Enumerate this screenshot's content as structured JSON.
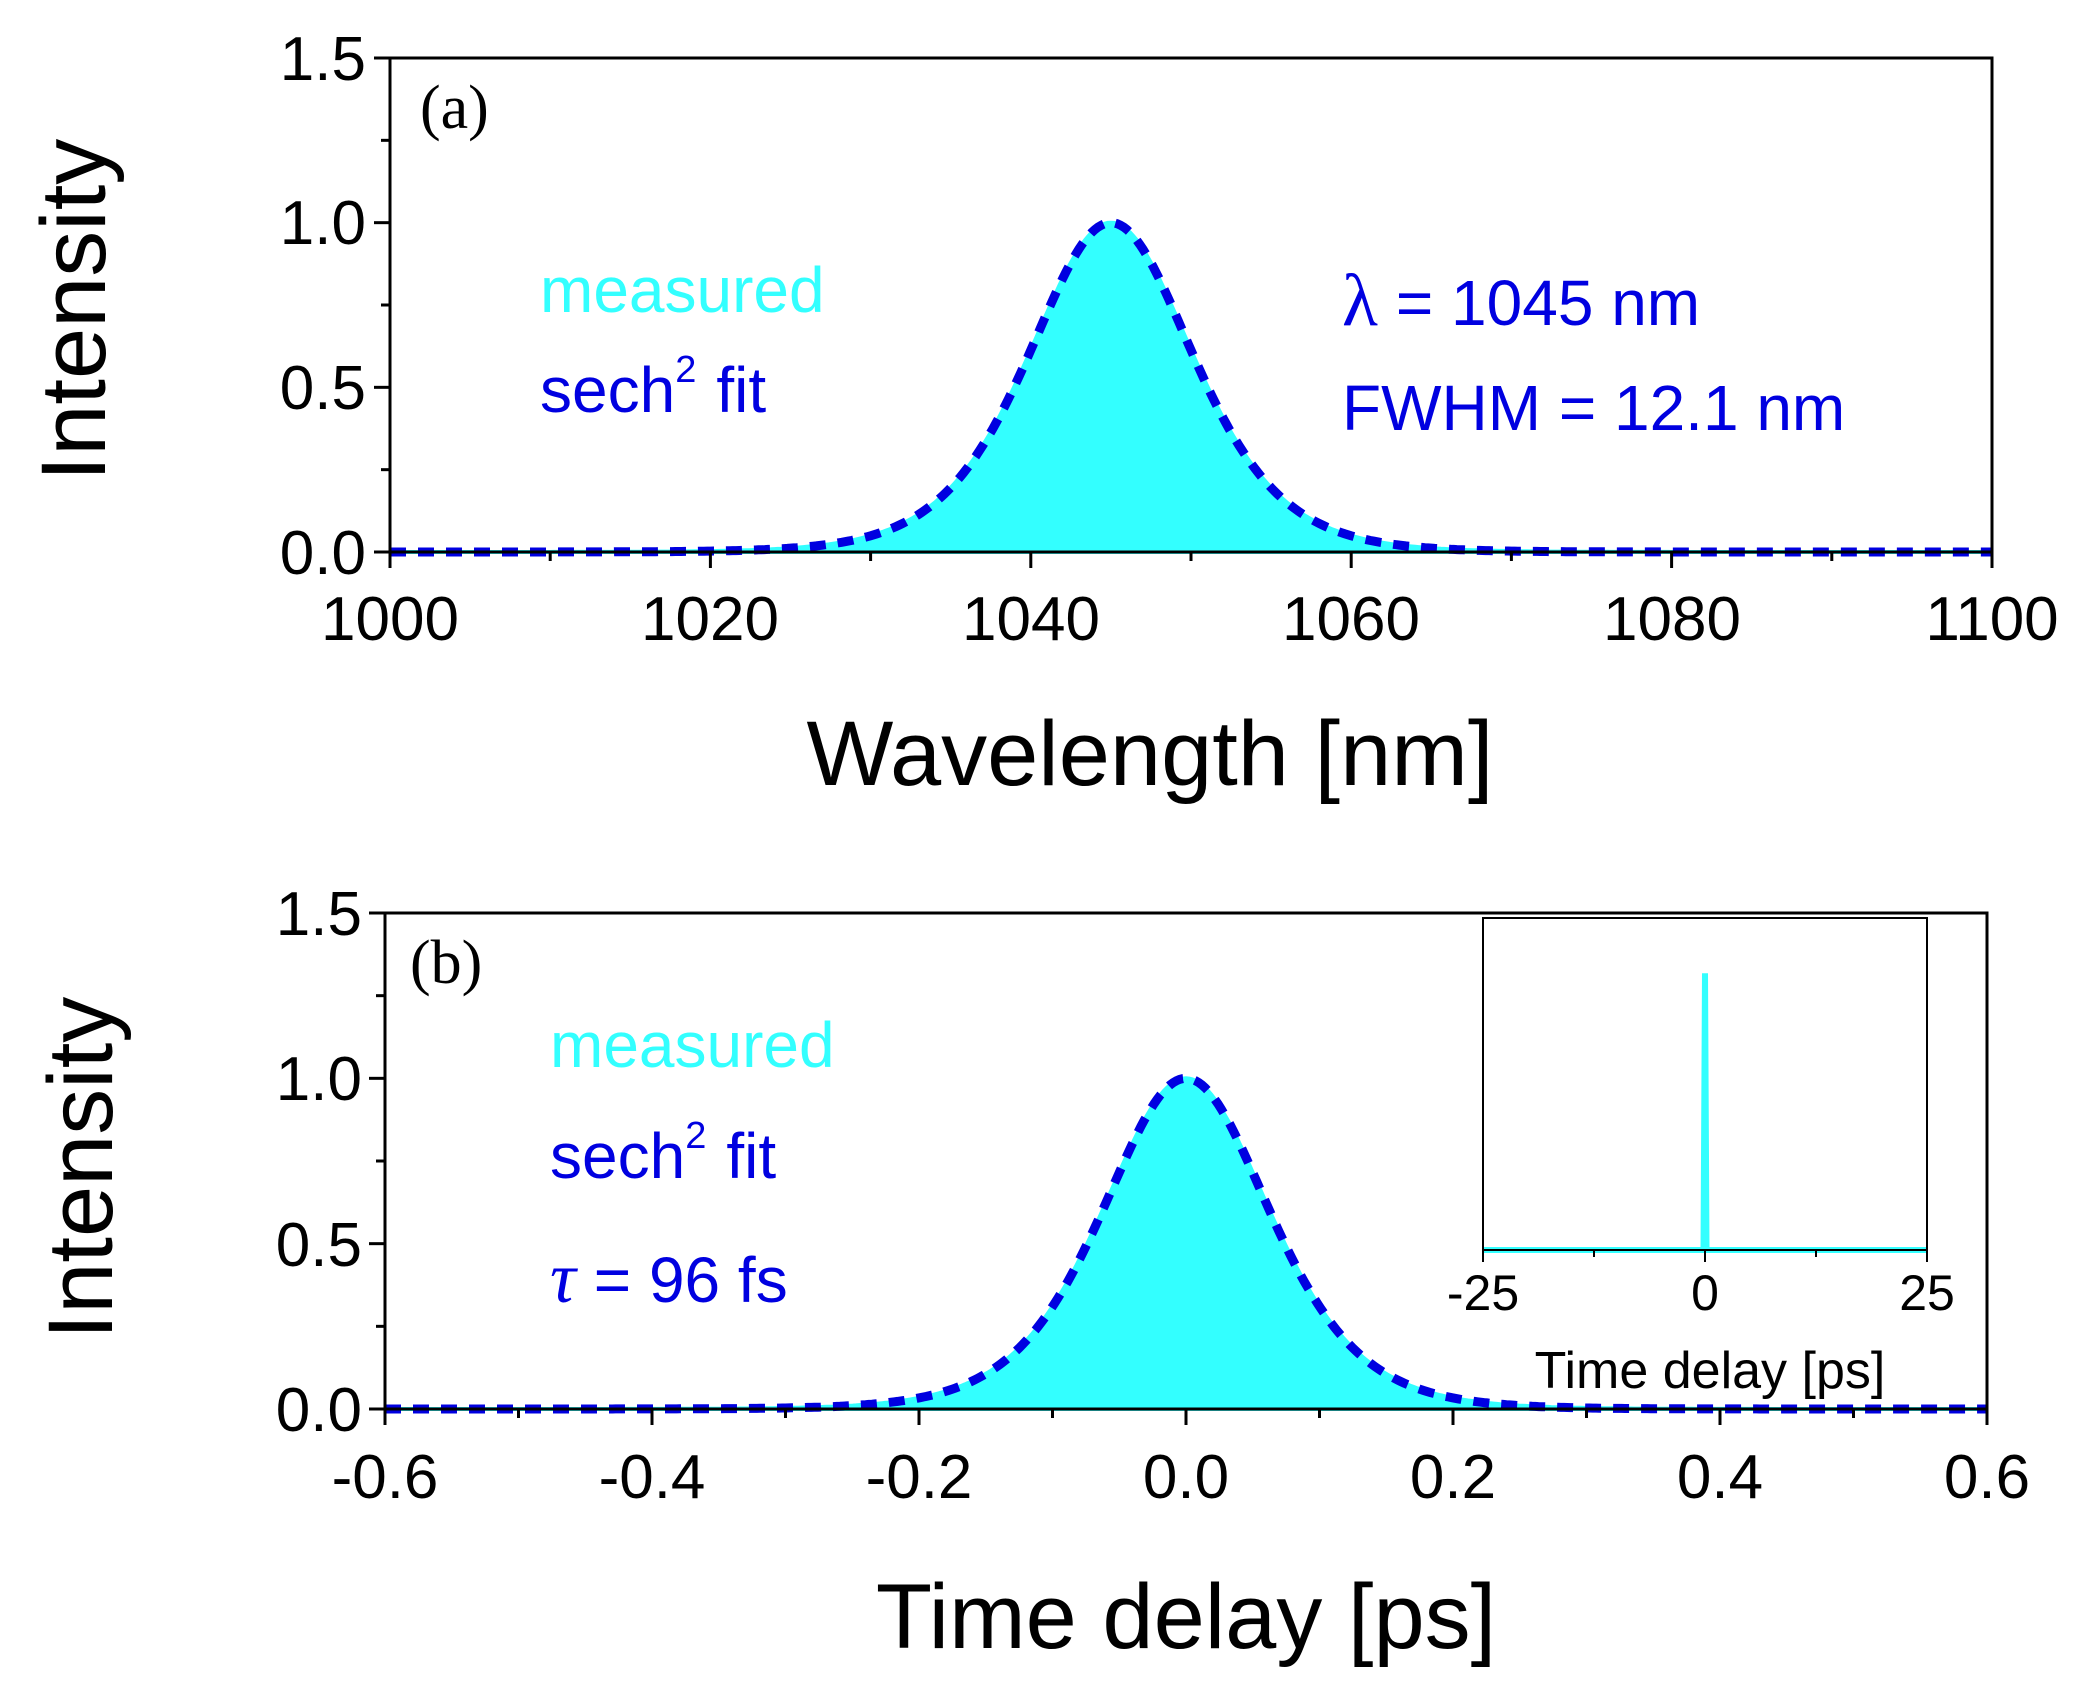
{
  "colors": {
    "measured": "#33FFFF",
    "fit": "#0000E0",
    "axis": "#000000"
  },
  "chart_data": [
    {
      "panel": "(a)",
      "type": "area",
      "xlabel": "Wavelength [nm]",
      "ylabel": "Intensity",
      "xlim": [
        1000,
        1100
      ],
      "ylim": [
        0,
        1.5
      ],
      "xticks": [
        "1000",
        "1020",
        "1040",
        "1060",
        "1080",
        "1100"
      ],
      "yticks": [
        "0.0",
        "0.5",
        "1.0",
        "1.5"
      ],
      "legend": [
        "measured",
        "sech",
        "2",
        "fit"
      ],
      "annotations": [
        "λ",
        "= 1045 nm",
        "FWHM = 12.1 nm"
      ],
      "series": [
        {
          "name": "measured",
          "style": "filled",
          "center": 1045,
          "fwhm": 12.1,
          "peak": 1.0,
          "x": [
            1000,
            1020,
            1028,
            1032,
            1035,
            1038,
            1040,
            1042,
            1044,
            1045,
            1046,
            1048,
            1050,
            1052,
            1055,
            1058,
            1062,
            1070,
            1100
          ],
          "y": [
            0,
            0.002,
            0.02,
            0.06,
            0.14,
            0.34,
            0.56,
            0.8,
            0.97,
            1.0,
            0.97,
            0.8,
            0.56,
            0.34,
            0.14,
            0.06,
            0.02,
            0.002,
            0
          ]
        },
        {
          "name": "sech² fit",
          "style": "dashed",
          "center": 1045,
          "fwhm": 12.1,
          "peak": 1.0,
          "x": [
            1000,
            1020,
            1028,
            1032,
            1035,
            1038,
            1040,
            1042,
            1044,
            1045,
            1046,
            1048,
            1050,
            1052,
            1055,
            1058,
            1062,
            1070,
            1100
          ],
          "y": [
            0,
            0.002,
            0.02,
            0.06,
            0.14,
            0.34,
            0.56,
            0.8,
            0.97,
            1.0,
            0.97,
            0.8,
            0.56,
            0.34,
            0.14,
            0.06,
            0.02,
            0.002,
            0
          ]
        }
      ]
    },
    {
      "panel": "(b)",
      "type": "area",
      "xlabel": "Time delay [ps]",
      "ylabel": "Intensity",
      "xlim": [
        -0.6,
        0.6
      ],
      "ylim": [
        0,
        1.5
      ],
      "xticks": [
        "-0.6",
        "-0.4",
        "-0.2",
        "0.0",
        "0.2",
        "0.4",
        "0.6"
      ],
      "yticks": [
        "0.0",
        "0.5",
        "1.0",
        "1.5"
      ],
      "legend": [
        "measured",
        "sech",
        "2",
        "fit"
      ],
      "annotations": [
        "τ",
        "= 96 fs"
      ],
      "series": [
        {
          "name": "measured",
          "style": "filled",
          "center": 0.0,
          "fwhm": 0.148,
          "peak": 1.0,
          "x": [
            -0.6,
            -0.3,
            -0.2,
            -0.15,
            -0.1,
            -0.05,
            0.0,
            0.05,
            0.1,
            0.15,
            0.2,
            0.3,
            0.6
          ],
          "y": [
            0,
            0.002,
            0.02,
            0.09,
            0.29,
            0.73,
            1.0,
            0.73,
            0.29,
            0.09,
            0.02,
            0.002,
            0
          ]
        },
        {
          "name": "sech² fit",
          "style": "dashed",
          "center": 0.0,
          "fwhm": 0.148,
          "peak": 1.0,
          "x": [
            -0.6,
            -0.3,
            -0.2,
            -0.15,
            -0.1,
            -0.05,
            0.0,
            0.05,
            0.1,
            0.15,
            0.2,
            0.3,
            0.6
          ],
          "y": [
            0,
            0.002,
            0.02,
            0.09,
            0.29,
            0.73,
            1.0,
            0.73,
            0.29,
            0.09,
            0.02,
            0.002,
            0
          ]
        }
      ]
    },
    {
      "panel": "inset",
      "type": "line",
      "xlabel": "Time delay [ps]",
      "ylabel": "",
      "xlim": [
        -25,
        25
      ],
      "ylim": [
        0,
        1.2
      ],
      "xticks": [
        "-25",
        "0",
        "25"
      ],
      "series": [
        {
          "name": "measured",
          "style": "solid",
          "center": 0.0,
          "width": 0.15,
          "peak": 1.0,
          "x": [
            -25,
            -0.3,
            0,
            0.3,
            25
          ],
          "y": [
            0,
            0,
            1.0,
            0,
            0
          ]
        }
      ]
    }
  ]
}
